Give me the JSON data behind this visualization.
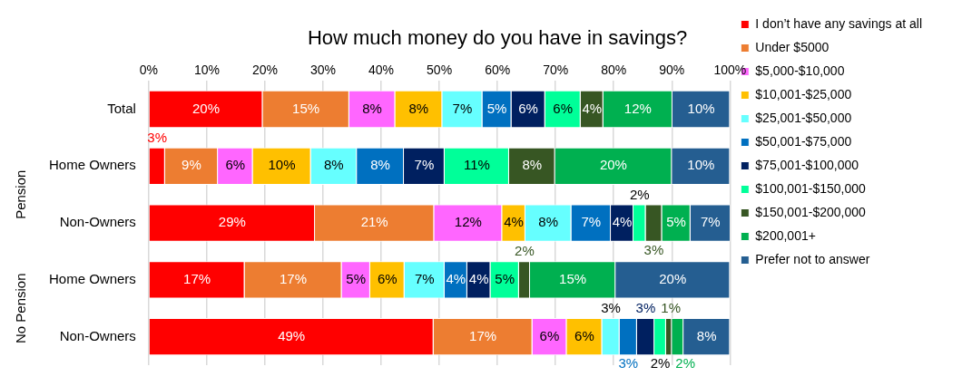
{
  "chart_data": {
    "type": "bar",
    "orientation": "horizontal",
    "stacked": true,
    "title": "How much money do you have in savings?",
    "categories": [
      "Total",
      "Home Owners",
      "Non-Owners",
      "Home Owners",
      "Non-Owners"
    ],
    "annotations": [
      "Pension",
      "No Pension"
    ],
    "xlim": [
      0,
      100
    ],
    "xticks": [
      {
        "value": 0,
        "label": "0%"
      },
      {
        "value": 10,
        "label": "10%"
      },
      {
        "value": 20,
        "label": "20%"
      },
      {
        "value": 30,
        "label": "30%"
      },
      {
        "value": 40,
        "label": "40%"
      },
      {
        "value": 50,
        "label": "50%"
      },
      {
        "value": 60,
        "label": "60%"
      },
      {
        "value": 70,
        "label": "70%"
      },
      {
        "value": 80,
        "label": "80%"
      },
      {
        "value": 90,
        "label": "90%"
      },
      {
        "value": 100,
        "label": "100%"
      }
    ],
    "grid": "x",
    "legend": "right",
    "series": [
      {
        "name": "I don’t have any savings at all",
        "color": "#ff0000",
        "values": [
          19.6,
          2.8,
          28.6,
          16.5,
          49.0
        ],
        "value_labels": [
          "20%",
          "3%",
          "29%",
          "17%",
          "49%"
        ]
      },
      {
        "name": "Under $5000",
        "color": "#ed7d31",
        "values": [
          14.9,
          9.1,
          20.5,
          16.7,
          17.0
        ],
        "value_labels": [
          "15%",
          "9%",
          "21%",
          "17%",
          "17%"
        ]
      },
      {
        "name": "$5,000-$10,000",
        "color": "#ff66ff",
        "values": [
          7.9,
          6.0,
          11.7,
          4.9,
          5.9
        ],
        "value_labels": [
          "8%",
          "6%",
          "12%",
          "5%",
          "6%"
        ]
      },
      {
        "name": "$10,001-$25,000",
        "color": "#ffc000",
        "values": [
          8.1,
          10.0,
          4.0,
          5.9,
          6.1
        ],
        "value_labels": [
          "8%",
          "10%",
          "4%",
          "6%",
          "6%"
        ]
      },
      {
        "name": "$25,001-$50,000",
        "color": "#66ffff",
        "values": [
          6.9,
          7.9,
          7.9,
          6.9,
          3.0
        ],
        "value_labels": [
          "7%",
          "8%",
          "8%",
          "7%",
          "3%"
        ]
      },
      {
        "name": "$50,001-$75,000",
        "color": "#0070c0",
        "values": [
          5.0,
          8.1,
          6.8,
          3.9,
          3.0
        ],
        "value_labels": [
          "5%",
          "8%",
          "7%",
          "4%",
          "3%"
        ]
      },
      {
        "name": "$75,001-$100,000",
        "color": "#002060",
        "values": [
          5.8,
          7.0,
          3.9,
          4.0,
          3.0
        ],
        "value_labels": [
          "6%",
          "7%",
          "4%",
          "4%",
          "3%"
        ]
      },
      {
        "name": "$100,001-$150,000",
        "color": "#00ff99",
        "values": [
          6.1,
          11.1,
          2.1,
          4.9,
          2.0
        ],
        "value_labels": [
          "6%",
          "11%",
          "2%",
          "5%",
          "2%"
        ]
      },
      {
        "name": "$150,001-$200,000",
        "color": "#375623",
        "values": [
          3.9,
          7.9,
          2.8,
          1.9,
          1.0
        ],
        "value_labels": [
          "4%",
          "8%",
          "3%",
          "2%",
          "1%"
        ]
      },
      {
        "name": "$200,001+",
        "color": "#00b050",
        "values": [
          11.9,
          20.1,
          4.9,
          14.7,
          2.0
        ],
        "value_labels": [
          "12%",
          "20%",
          "5%",
          "15%",
          "2%"
        ]
      },
      {
        "name": "Prefer not to answer",
        "color": "#255e91",
        "values": [
          9.9,
          10.0,
          6.9,
          19.7,
          8.0
        ],
        "value_labels": [
          "10%",
          "10%",
          "7%",
          "20%",
          "8%"
        ]
      }
    ]
  }
}
